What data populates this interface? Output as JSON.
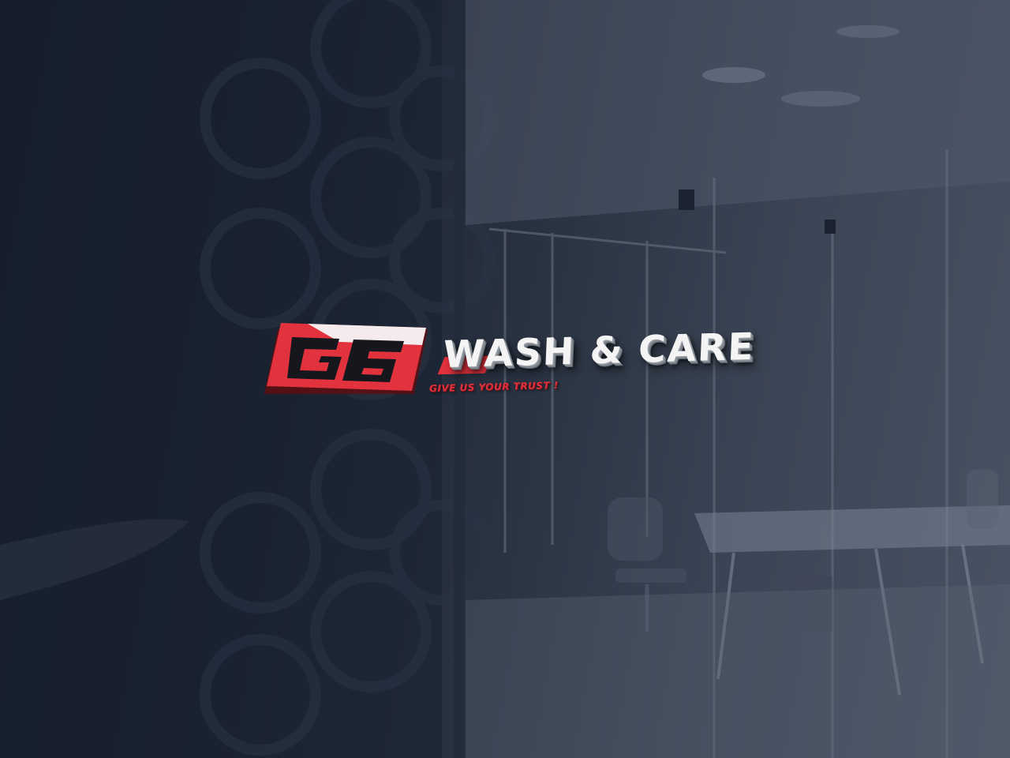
{
  "logo": {
    "mark_text": "G6",
    "brand_name": "WASH & CARE",
    "tagline": "GIVE US YOUR TRUST !"
  },
  "colors": {
    "brand_red": "#e2323e",
    "brand_black": "#15171c",
    "brand_white": "#f4f4f4",
    "wall_dark": "#151b26",
    "glass_blue_gray": "#4a5363"
  },
  "icons": {
    "logo_mark": "g6-badge"
  }
}
